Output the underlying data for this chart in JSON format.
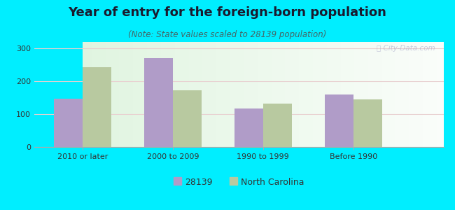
{
  "title": "Year of entry for the foreign-born population",
  "subtitle": "(Note: State values scaled to 28139 population)",
  "categories": [
    "2010 or later",
    "2000 to 2009",
    "1990 to 1999",
    "Before 1990"
  ],
  "series_28139": [
    148,
    270,
    117,
    160
  ],
  "series_nc": [
    243,
    172,
    133,
    145
  ],
  "color_28139": "#b09cc8",
  "color_nc": "#b8c9a0",
  "ylim": [
    0,
    320
  ],
  "yticks": [
    0,
    100,
    200,
    300
  ],
  "legend_28139": "28139",
  "legend_nc": "North Carolina",
  "bg_outer": "#00eeff",
  "bar_width": 0.32,
  "title_fontsize": 13,
  "subtitle_fontsize": 8.5,
  "tick_fontsize": 8,
  "legend_fontsize": 9,
  "title_color": "#1a1a2e",
  "subtitle_color": "#446666",
  "tick_color": "#333333"
}
